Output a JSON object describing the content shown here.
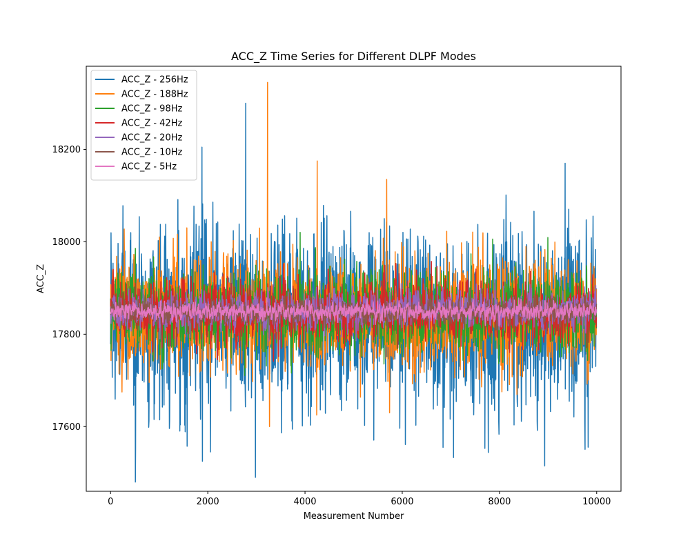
{
  "chart_data": {
    "type": "line",
    "title": "ACC_Z Time Series for Different DLPF Modes",
    "xlabel": "Measurement Number",
    "ylabel": "ACC_Z",
    "xlim": [
      -500,
      10500
    ],
    "ylim": [
      17460,
      18380
    ],
    "xticks": [
      0,
      2000,
      4000,
      6000,
      8000,
      10000
    ],
    "yticks": [
      17600,
      17800,
      18000,
      18200
    ],
    "grid": false,
    "legend_position": "top-left",
    "series": [
      {
        "name": "ACC_Z - 256Hz",
        "color": "#1f77b4",
        "center": 17840,
        "spread": 110,
        "n_points": 10000,
        "spikes": [
          [
            510,
            17480
          ],
          [
            2780,
            18300
          ],
          [
            2980,
            17490
          ],
          [
            1890,
            17525
          ],
          [
            8930,
            17515
          ],
          [
            1880,
            18205
          ],
          [
            9350,
            18170
          ]
        ]
      },
      {
        "name": "ACC_Z - 188Hz",
        "color": "#ff7f0e",
        "center": 17845,
        "spread": 70,
        "n_points": 10000,
        "spikes": [
          [
            3230,
            18345
          ],
          [
            3270,
            17600
          ],
          [
            4250,
            18175
          ],
          [
            5680,
            18135
          ],
          [
            4240,
            17625
          ],
          [
            5740,
            17630
          ]
        ]
      },
      {
        "name": "ACC_Z - 98Hz",
        "color": "#2ca02c",
        "center": 17845,
        "spread": 50,
        "n_points": 10000,
        "spikes": []
      },
      {
        "name": "ACC_Z - 42Hz",
        "color": "#d62728",
        "center": 17848,
        "spread": 35,
        "n_points": 10000,
        "spikes": []
      },
      {
        "name": "ACC_Z - 20Hz",
        "color": "#9467bd",
        "center": 17852,
        "spread": 22,
        "n_points": 10000,
        "spikes": []
      },
      {
        "name": "ACC_Z - 10Hz",
        "color": "#8c564b",
        "center": 17850,
        "spread": 18,
        "n_points": 10000,
        "spikes": []
      },
      {
        "name": "ACC_Z - 5Hz",
        "color": "#e377c2",
        "center": 17850,
        "spread": 12,
        "n_points": 10000,
        "spikes": []
      }
    ]
  }
}
